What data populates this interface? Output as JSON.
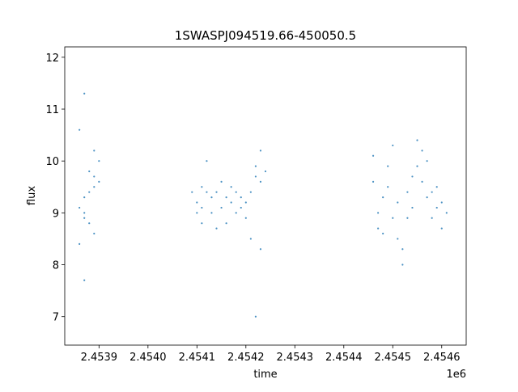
{
  "chart_data": {
    "type": "scatter",
    "title": "1SWASPJ094519.66-450050.5",
    "xlabel": "time",
    "ylabel": "flux",
    "x_offset_label": "1e6",
    "xlim": [
      2.45383,
      2.45465
    ],
    "ylim": [
      6.45,
      12.2
    ],
    "x_ticks": [
      {
        "value": 2.4539,
        "label": "2.4539"
      },
      {
        "value": 2.454,
        "label": "2.4540"
      },
      {
        "value": 2.4541,
        "label": "2.4541"
      },
      {
        "value": 2.4542,
        "label": "2.4542"
      },
      {
        "value": 2.4543,
        "label": "2.4543"
      },
      {
        "value": 2.4544,
        "label": "2.4544"
      },
      {
        "value": 2.4545,
        "label": "2.4545"
      },
      {
        "value": 2.4546,
        "label": "2.4546"
      }
    ],
    "y_ticks": [
      {
        "value": 7,
        "label": "7"
      },
      {
        "value": 8,
        "label": "8"
      },
      {
        "value": 9,
        "label": "9"
      },
      {
        "value": 10,
        "label": "10"
      },
      {
        "value": 11,
        "label": "11"
      },
      {
        "value": 12,
        "label": "12"
      }
    ],
    "grid": false,
    "marker_color": "#1f77b4",
    "series": [
      {
        "x": [
          2.45386,
          2.45386,
          2.45386,
          2.45387,
          2.45387,
          2.45387,
          2.45387,
          2.45387,
          2.45388,
          2.45388,
          2.45388,
          2.45389,
          2.45389,
          2.45389,
          2.45389,
          2.4539,
          2.4539,
          2.45409,
          2.4541,
          2.4541,
          2.45411,
          2.45411,
          2.45411,
          2.45412,
          2.45412,
          2.45413,
          2.45413,
          2.45414,
          2.45414,
          2.45415,
          2.45415,
          2.45416,
          2.45416,
          2.45417,
          2.45417,
          2.45418,
          2.45418,
          2.45419,
          2.45419,
          2.4542,
          2.4542,
          2.45421,
          2.45421,
          2.45422,
          2.45422,
          2.45422,
          2.45423,
          2.45423,
          2.45423,
          2.45424,
          2.45446,
          2.45446,
          2.45447,
          2.45447,
          2.45448,
          2.45448,
          2.45449,
          2.45449,
          2.4545,
          2.4545,
          2.45451,
          2.45451,
          2.45452,
          2.45452,
          2.45453,
          2.45453,
          2.45454,
          2.45454,
          2.45455,
          2.45455,
          2.45456,
          2.45456,
          2.45457,
          2.45457,
          2.45458,
          2.45458,
          2.45459,
          2.45459,
          2.4546,
          2.4546,
          2.45461
        ],
        "y": [
          9.1,
          10.6,
          8.4,
          8.9,
          9.3,
          11.3,
          7.7,
          9.0,
          9.4,
          9.8,
          8.8,
          9.5,
          10.2,
          9.7,
          8.6,
          9.6,
          10.0,
          9.4,
          9.2,
          9.0,
          8.8,
          9.5,
          9.1,
          10.0,
          9.4,
          9.3,
          9.0,
          8.7,
          9.4,
          9.6,
          9.1,
          9.3,
          8.8,
          9.5,
          9.2,
          9.0,
          9.4,
          9.1,
          9.3,
          8.9,
          9.2,
          9.4,
          8.5,
          9.7,
          9.9,
          7.0,
          10.2,
          9.6,
          8.3,
          9.8,
          9.6,
          10.1,
          9.0,
          8.7,
          8.6,
          9.3,
          9.5,
          9.9,
          10.3,
          8.9,
          9.2,
          8.5,
          8.0,
          8.3,
          8.9,
          9.4,
          9.7,
          9.1,
          10.4,
          9.9,
          10.2,
          9.6,
          9.3,
          10.0,
          9.4,
          8.9,
          9.1,
          9.5,
          9.2,
          8.7,
          9.0
        ]
      }
    ]
  }
}
